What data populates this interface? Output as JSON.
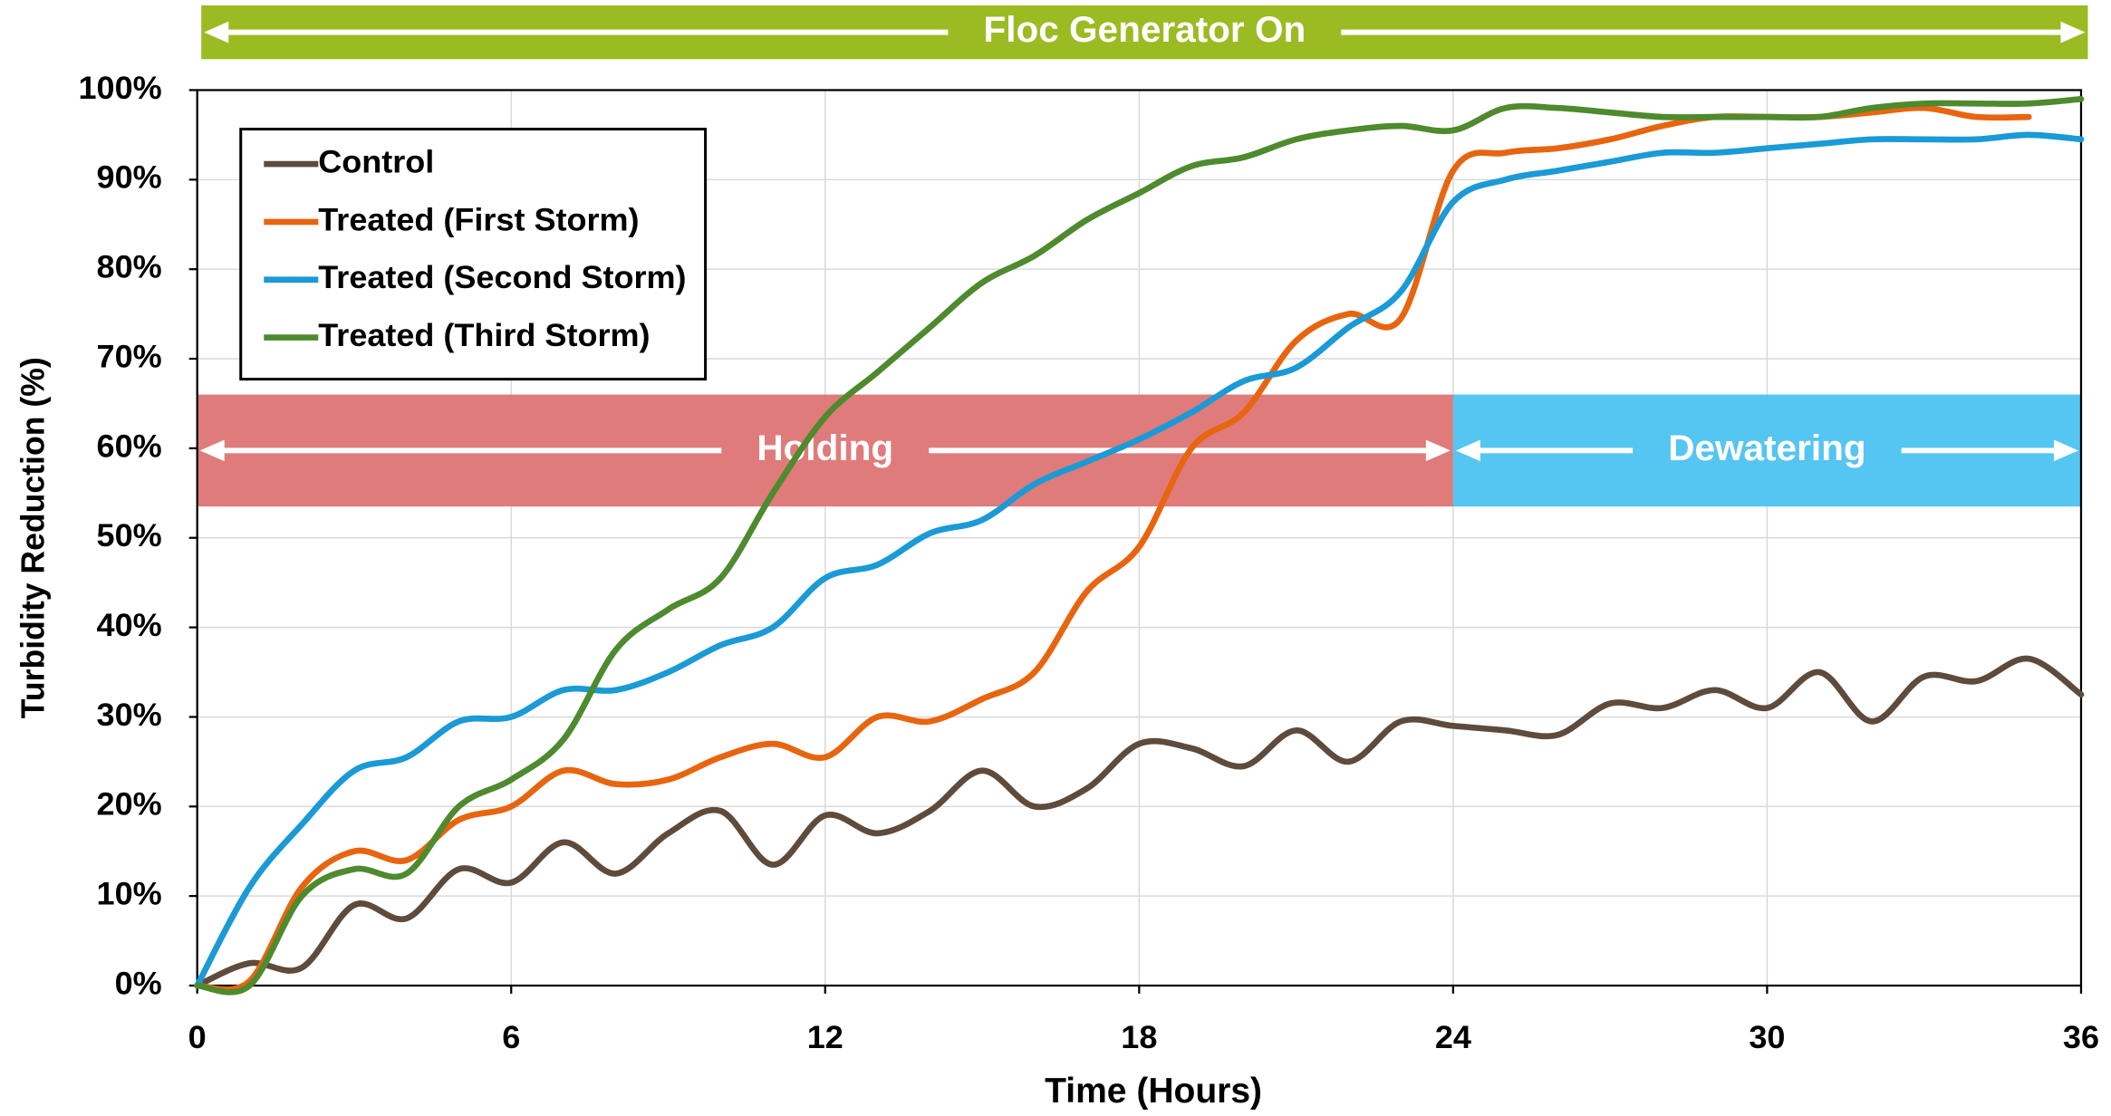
{
  "chart_data": {
    "type": "line",
    "xlabel": "Time (Hours)",
    "ylabel": "Turbidity Reduction (%)",
    "x": [
      0,
      1,
      2,
      3,
      4,
      5,
      6,
      7,
      8,
      9,
      10,
      11,
      12,
      13,
      14,
      15,
      16,
      17,
      18,
      19,
      20,
      21,
      22,
      23,
      24,
      25,
      26,
      27,
      28,
      29,
      30,
      31,
      32,
      33,
      34,
      35,
      36
    ],
    "series": [
      {
        "name": "Control",
        "color": "#5e4b3c",
        "values": [
          0,
          2.5,
          2,
          9,
          7.5,
          13,
          11.5,
          16,
          12.5,
          17,
          19.5,
          13.5,
          19,
          17,
          19.5,
          24,
          20,
          22,
          27,
          26.5,
          24.5,
          28.5,
          25,
          29.5,
          29,
          28.5,
          28,
          31.5,
          31,
          33,
          31,
          35,
          29.5,
          34.5,
          34,
          36.5,
          32.5
        ]
      },
      {
        "name": "Treated (First Storm)",
        "color": "#e8650f",
        "values": [
          0,
          0.5,
          11,
          15,
          14,
          18.5,
          20,
          24,
          22.5,
          23,
          25.5,
          27,
          25.5,
          30,
          29.5,
          32,
          35,
          44,
          49,
          60,
          64,
          72,
          75,
          74.5,
          91,
          93,
          93.5,
          94.5,
          96,
          97,
          97,
          97,
          97.5,
          98,
          97,
          97,
          null
        ]
      },
      {
        "name": "Treated (Second Storm)",
        "color": "#1a9ad6",
        "values": [
          0,
          11,
          18,
          24,
          25.5,
          29.5,
          30,
          33,
          33,
          35,
          38,
          40,
          45.5,
          47,
          50.5,
          52,
          56,
          58.5,
          61,
          64,
          67.5,
          69,
          73.5,
          77.5,
          87.5,
          90,
          91,
          92,
          93,
          93,
          93.5,
          94,
          94.5,
          94.5,
          94.5,
          95,
          94.5
        ]
      },
      {
        "name": "Treated (Third Storm)",
        "color": "#4e8a2e",
        "values": [
          0,
          0,
          10,
          13,
          12.5,
          20,
          23,
          27.5,
          37.5,
          42,
          45.5,
          55,
          63.5,
          68.5,
          73.5,
          78.5,
          81.5,
          85.5,
          88.5,
          91.5,
          92.5,
          94.5,
          95.5,
          96,
          95.5,
          98,
          98,
          97.5,
          97,
          97,
          97,
          97,
          98,
          98.5,
          98.5,
          98.5,
          99
        ]
      }
    ],
    "xlim": [
      0,
      36
    ],
    "xticks": [
      0,
      6,
      12,
      18,
      24,
      30,
      36
    ],
    "ylim": [
      0,
      100
    ],
    "yticks": [
      {
        "value": 0,
        "label": "0%"
      },
      {
        "value": 10,
        "label": "10%"
      },
      {
        "value": 20,
        "label": "20%"
      },
      {
        "value": 30,
        "label": "30%"
      },
      {
        "value": 40,
        "label": "40%"
      },
      {
        "value": 50,
        "label": "50%"
      },
      {
        "value": 60,
        "label": "60%"
      },
      {
        "value": 70,
        "label": "70%"
      },
      {
        "value": 80,
        "label": "80%"
      },
      {
        "value": 90,
        "label": "90%"
      },
      {
        "value": 100,
        "label": "100%"
      }
    ],
    "grid": true,
    "legend": "upper left",
    "annotations": [
      {
        "text": "Floc Generator On",
        "x": [
          0,
          36
        ],
        "color": "#9bbb22"
      },
      {
        "text": "Holding",
        "x": [
          0,
          24
        ],
        "y": [
          53.5,
          66
        ],
        "color": "#e07b7b"
      },
      {
        "text": "Dewatering",
        "x": [
          24,
          36
        ],
        "y": [
          53.5,
          66
        ],
        "color": "#55c5f2"
      }
    ]
  }
}
